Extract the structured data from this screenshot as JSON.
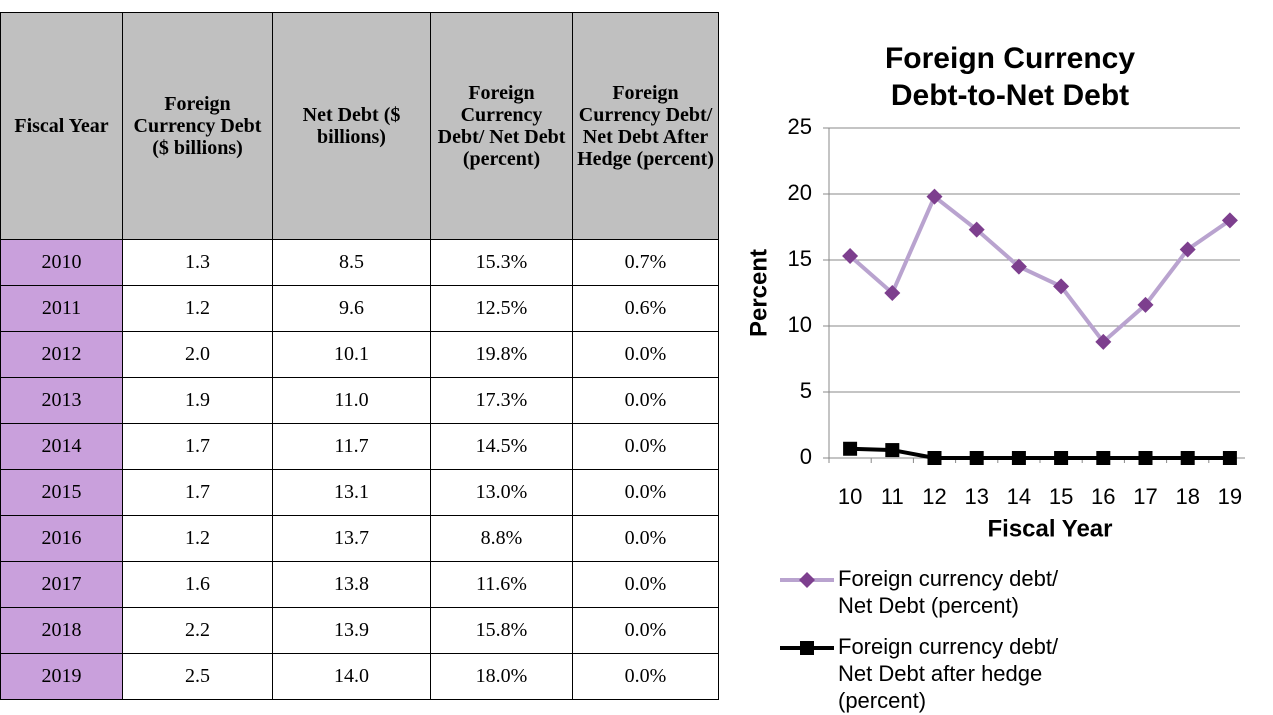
{
  "table": {
    "header": [
      "Fiscal Year",
      "Foreign Currency Debt ($ billions)",
      "Net Debt ($ billions)",
      "Foreign Currency Debt/ Net Debt (percent)",
      "Foreign Currency Debt/ Net Debt After Hedge (percent)"
    ],
    "rows": [
      [
        "2010",
        "1.3",
        "8.5",
        "15.3%",
        "0.7%"
      ],
      [
        "2011",
        "1.2",
        "9.6",
        "12.5%",
        "0.6%"
      ],
      [
        "2012",
        "2.0",
        "10.1",
        "19.8%",
        "0.0%"
      ],
      [
        "2013",
        "1.9",
        "11.0",
        "17.3%",
        "0.0%"
      ],
      [
        "2014",
        "1.7",
        "11.7",
        "14.5%",
        "0.0%"
      ],
      [
        "2015",
        "1.7",
        "13.1",
        "13.0%",
        "0.0%"
      ],
      [
        "2016",
        "1.2",
        "13.7",
        "8.8%",
        "0.0%"
      ],
      [
        "2017",
        "1.6",
        "13.8",
        "11.6%",
        "0.0%"
      ],
      [
        "2018",
        "2.2",
        "13.9",
        "15.8%",
        "0.0%"
      ],
      [
        "2019",
        "2.5",
        "14.0",
        "18.0%",
        "0.0%"
      ]
    ]
  },
  "chart_data": {
    "type": "line",
    "title": "Foreign Currency Debt-to-Net Debt",
    "x_label": "Fiscal Year",
    "y_label": "Percent",
    "categories": [
      "10",
      "11",
      "12",
      "13",
      "14",
      "15",
      "16",
      "17",
      "18",
      "19"
    ],
    "series": [
      {
        "name": "Foreign currency debt/ Net Debt (percent)",
        "color": "#b9a3cf",
        "marker_color": "#7d3f8e",
        "marker": "diamond",
        "values": [
          15.3,
          12.5,
          19.8,
          17.3,
          14.5,
          13.0,
          8.8,
          11.6,
          15.8,
          18.0
        ]
      },
      {
        "name": "Foreign currency debt/ Net Debt after hedge (percent)",
        "color": "#000000",
        "marker_color": "#000000",
        "marker": "square",
        "values": [
          0.7,
          0.6,
          0,
          0,
          0,
          0,
          0,
          0,
          0,
          0
        ]
      }
    ],
    "ylim": [
      0,
      25
    ],
    "yticks": [
      0,
      5,
      10,
      15,
      20,
      25
    ],
    "grid": true,
    "legend": "bottom"
  }
}
